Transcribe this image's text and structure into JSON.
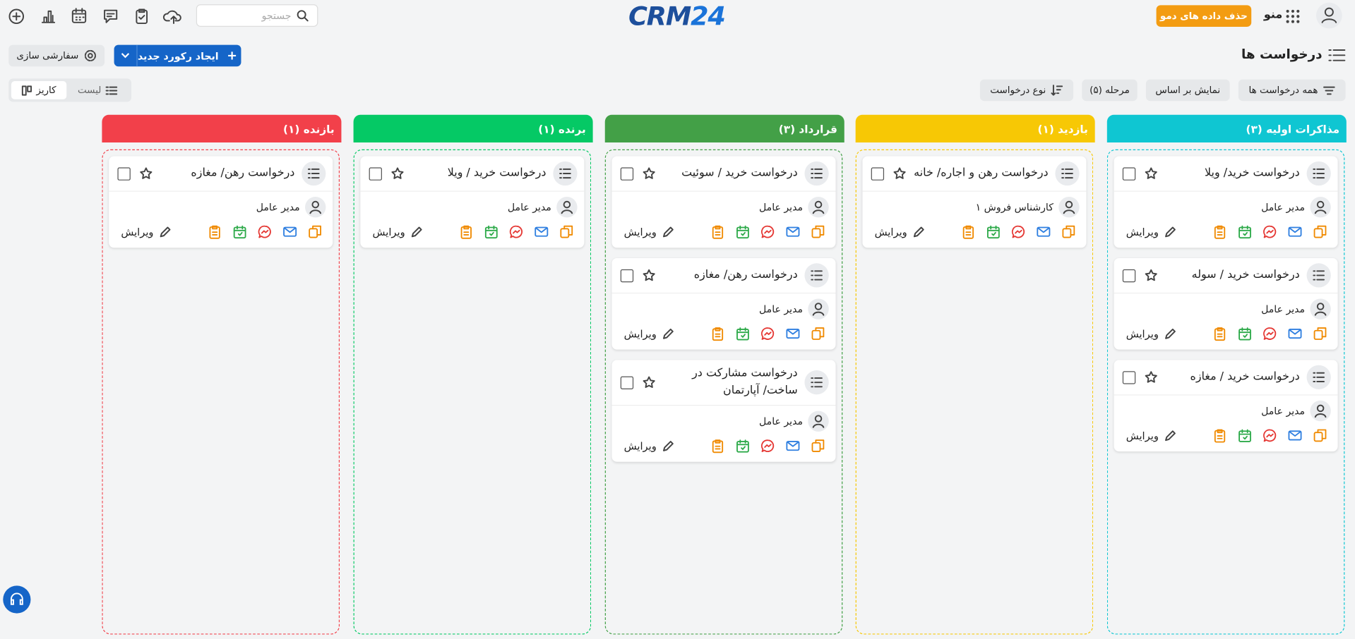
{
  "header": {
    "search_placeholder": "جستجو",
    "logo_main": "CRM",
    "logo_num": "24",
    "menu": "منو",
    "delete_demo": "حذف داده های دمو"
  },
  "page": {
    "title": "درخواست ها",
    "create": "ایجاد رکورد جدید",
    "customize": "سفارشی سازی"
  },
  "filters": [
    "همه درخواست ها",
    "نمایش بر اساس",
    "مرحله (۵)",
    "نوع درخواست"
  ],
  "view_toggle": {
    "list": "لیست",
    "kanban": "کاریز"
  },
  "card_edit_label": "ویرایش",
  "columns": [
    {
      "title": "مذاکرات اولیه (۳)",
      "color": "#0fc6d2",
      "cards": [
        {
          "title": "درخواست خرید/ ویلا",
          "owner": "مدیر عامل"
        },
        {
          "title": "درخواست خرید / سوله",
          "owner": "مدیر عامل"
        },
        {
          "title": "درخواست خرید / مغازه",
          "owner": "مدیر عامل"
        }
      ]
    },
    {
      "title": "بازدید (۱)",
      "color": "#f7c805",
      "cards": [
        {
          "title": "درخواست رهن و اجاره/ خانه",
          "owner": "کارشناس فروش ۱"
        }
      ]
    },
    {
      "title": "قرارداد (۳)",
      "color": "#43a047",
      "cards": [
        {
          "title": "درخواست خرید / سوئیت",
          "owner": "مدیر عامل"
        },
        {
          "title": "درخواست رهن/ مغازه",
          "owner": "مدیر عامل"
        },
        {
          "title": "درخواست مشارکت در ساخت/ آپارتمان",
          "owner": "مدیر عامل"
        }
      ]
    },
    {
      "title": "برنده (۱)",
      "color": "#05c965",
      "cards": [
        {
          "title": "درخواست خرید / ویلا",
          "owner": "مدیر عامل"
        }
      ]
    },
    {
      "title": "بازنده (۱)",
      "color": "#f2404a",
      "cards": [
        {
          "title": "درخواست رهن/ مغازه",
          "owner": "مدیر عامل"
        }
      ]
    }
  ]
}
